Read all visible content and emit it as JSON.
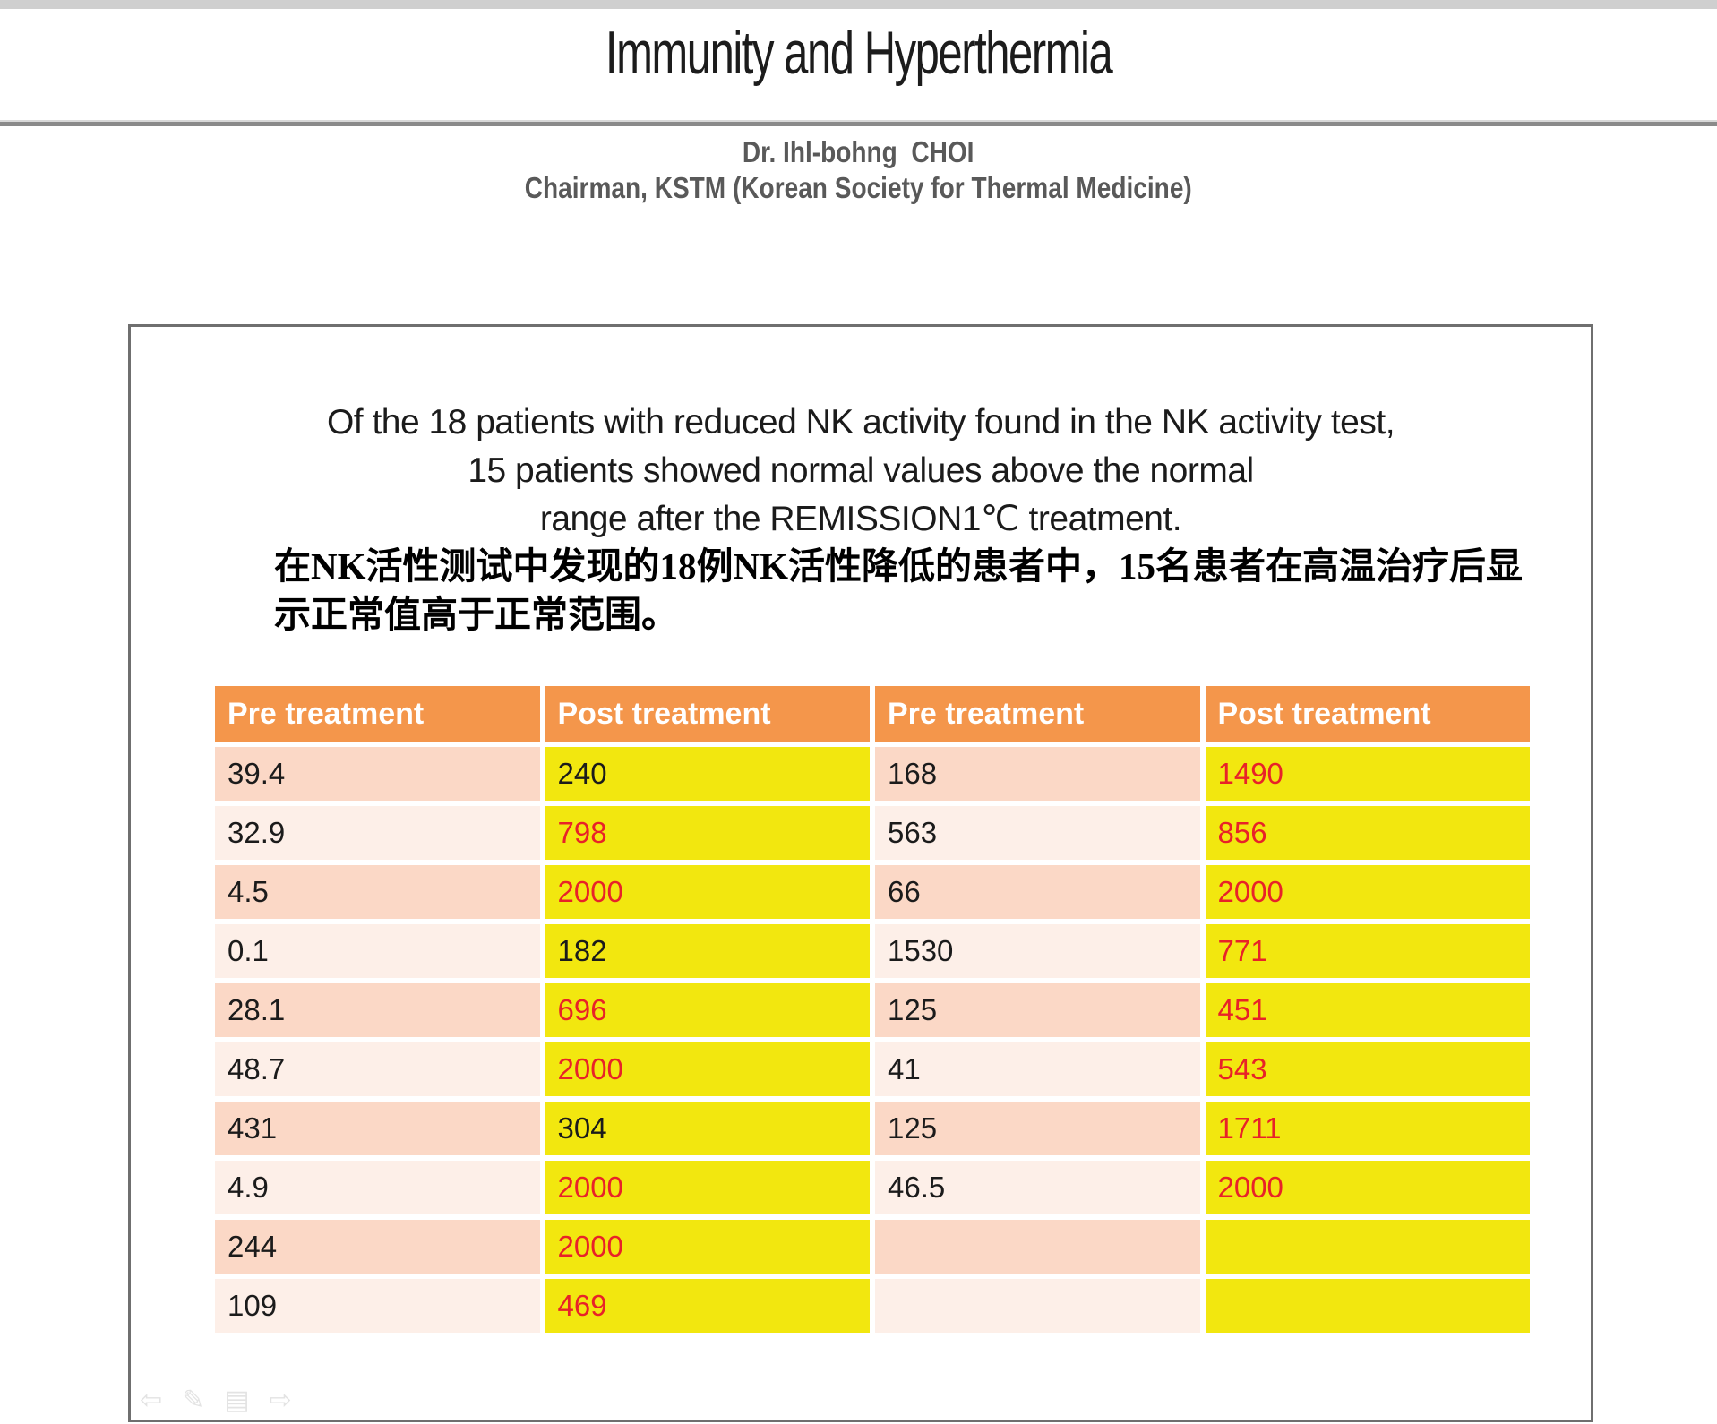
{
  "header": {
    "title": "Immunity and Hyperthermia",
    "author": "Dr. Ihl-bohng  CHOI",
    "affiliation": "Chairman, KSTM (Korean Society for Thermal Medicine)"
  },
  "summary": {
    "en_lines": [
      "Of the 18 patients with reduced NK activity found in the NK activity test,",
      "15 patients showed normal values above the normal",
      "range after the REMISSION1℃ treatment."
    ],
    "zh_lines": [
      "在NK活性测试中发现的18例NK活性降低的患者中，15名患者在高温治疗后显",
      "示正常值高于正常范围。"
    ]
  },
  "table": {
    "headers": [
      "Pre treatment",
      "Post treatment",
      "Pre treatment",
      "Post treatment"
    ],
    "rows": [
      {
        "cells": [
          {
            "t": "39.4",
            "red": false
          },
          {
            "t": "240",
            "red": false
          },
          {
            "t": "168",
            "red": false
          },
          {
            "t": "1490",
            "red": true
          }
        ]
      },
      {
        "cells": [
          {
            "t": "32.9",
            "red": false
          },
          {
            "t": "798",
            "red": true
          },
          {
            "t": "563",
            "red": false
          },
          {
            "t": "856",
            "red": true
          }
        ]
      },
      {
        "cells": [
          {
            "t": "4.5",
            "red": false
          },
          {
            "t": "2000",
            "red": true
          },
          {
            "t": "66",
            "red": false
          },
          {
            "t": "2000",
            "red": true
          }
        ]
      },
      {
        "cells": [
          {
            "t": "0.1",
            "red": false
          },
          {
            "t": "182",
            "red": false
          },
          {
            "t": "1530",
            "red": false
          },
          {
            "t": "771",
            "red": true
          }
        ]
      },
      {
        "cells": [
          {
            "t": "28.1",
            "red": false
          },
          {
            "t": "696",
            "red": true
          },
          {
            "t": "125",
            "red": false
          },
          {
            "t": "451",
            "red": true
          }
        ]
      },
      {
        "cells": [
          {
            "t": "48.7",
            "red": false
          },
          {
            "t": "2000",
            "red": true
          },
          {
            "t": "41",
            "red": false
          },
          {
            "t": "543",
            "red": true
          }
        ]
      },
      {
        "cells": [
          {
            "t": "431",
            "red": false
          },
          {
            "t": "304",
            "red": false
          },
          {
            "t": "125",
            "red": false
          },
          {
            "t": "1711",
            "red": true
          }
        ]
      },
      {
        "cells": [
          {
            "t": "4.9",
            "red": false
          },
          {
            "t": "2000",
            "red": true
          },
          {
            "t": "46.5",
            "red": false
          },
          {
            "t": "2000",
            "red": true
          }
        ]
      },
      {
        "cells": [
          {
            "t": "244",
            "red": false
          },
          {
            "t": "2000",
            "red": true
          },
          {
            "t": "",
            "red": false
          },
          {
            "t": "",
            "red": false
          }
        ]
      },
      {
        "cells": [
          {
            "t": "109",
            "red": false
          },
          {
            "t": "469",
            "red": true
          },
          {
            "t": "",
            "red": false
          },
          {
            "t": "",
            "red": false
          }
        ]
      }
    ]
  },
  "toolbar": {
    "icons": [
      {
        "name": "prev-slide-icon",
        "glyph": "⇦"
      },
      {
        "name": "pen-icon",
        "glyph": "✎"
      },
      {
        "name": "slide-menu-icon",
        "glyph": "▤"
      },
      {
        "name": "next-slide-icon",
        "glyph": "⇨"
      }
    ]
  },
  "colors": {
    "orange": "#F4964B",
    "yellow": "#F2E70F",
    "pink-dark": "#FBD8C6",
    "pink-light": "#FDEFE8",
    "red": "#E82228",
    "ink": "#1B1B1B",
    "subtitle-gray": "#595959",
    "divider-gray": "#8A8A8A",
    "topbar-gray": "#CFCFCF",
    "box-border": "#6F6F6F",
    "ghost": "#E3E3E3"
  }
}
